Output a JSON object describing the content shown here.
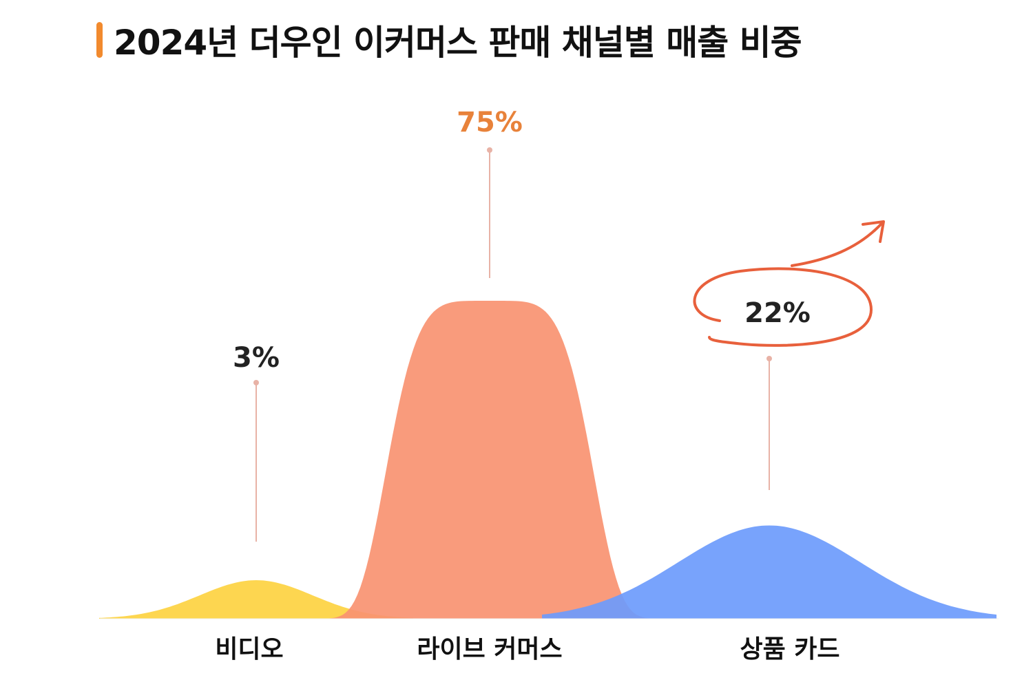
{
  "title": "2024년 더우인 이커머스 판매 채널별 매출 비중",
  "colors": {
    "title_accent": "#F28A2E",
    "leader_line": "#E8B2A6",
    "highlight_value": "#E8823A",
    "default_value": "#222222",
    "circle_arrow": "#E8603C"
  },
  "chart_data": {
    "type": "area",
    "categories": [
      "비디오",
      "라이브 커머스",
      "상품 카드"
    ],
    "values": [
      3,
      75,
      22
    ],
    "value_labels": [
      "3%",
      "75%",
      "22%"
    ],
    "unit": "%",
    "series_colors": [
      "#FDD650",
      "#F99271",
      "#6C9BFC"
    ],
    "highlighted_index": 1,
    "circled_index": 2
  }
}
